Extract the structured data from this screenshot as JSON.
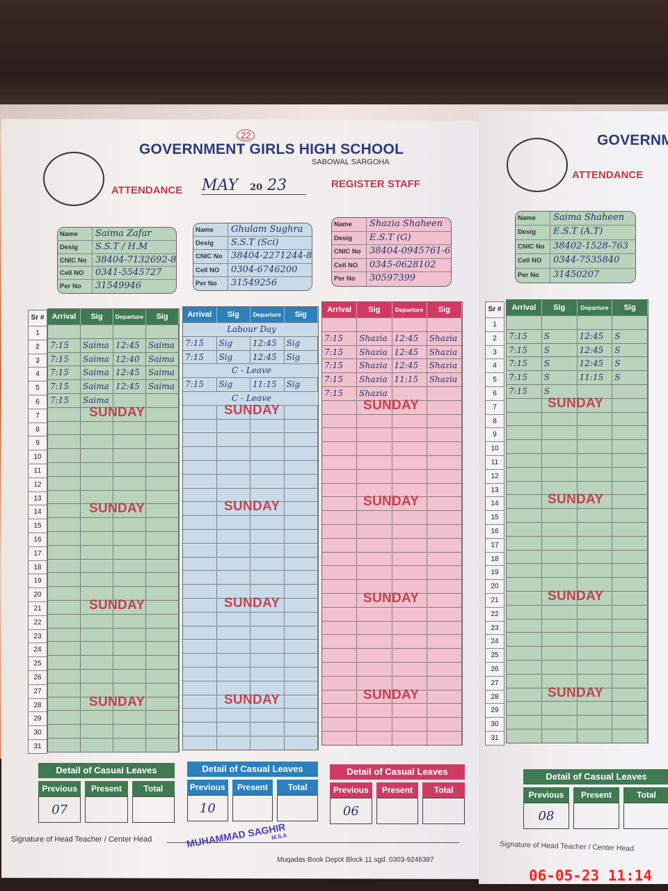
{
  "header": {
    "school": "GOVERNMENT GIRLS HIGH SCHOOL",
    "location": "SABOWAL SARGOHA",
    "attendance": "ATTENDANCE",
    "month": "MAY",
    "year_prefix": "20",
    "year_suffix": "23",
    "register": "REGISTER STAFF",
    "page_badge": "22"
  },
  "right_header": {
    "school": "GOVERNM",
    "attendance": "ATTENDANCE"
  },
  "card_labels": [
    "Name",
    "Desig",
    "CNIC No",
    "Cell NO",
    "Per No"
  ],
  "columns": {
    "sr": "Sr #",
    "arrival": "Arrival",
    "sig": "Sig",
    "departure": "Departure"
  },
  "stamp_text": "SUNDAY",
  "sunday_rows": [
    7,
    14,
    21,
    28
  ],
  "colors": {
    "green": "#3f7a52",
    "blue": "#2b80bd",
    "pink": "#cf3a63",
    "green_bg": "#b9d3bd",
    "blue_bg": "#c9dbe9",
    "pink_bg": "#f1c1cf"
  },
  "staff": [
    {
      "name": "Saima Zafar",
      "desig": "S.S.T / H.M",
      "cnic": "38404-7132692-8",
      "cell": "0341-5545727",
      "per": "31549946",
      "rows": [
        [
          "",
          "",
          "",
          ""
        ],
        [
          "7:15",
          "Saima",
          "12:45",
          "Saima"
        ],
        [
          "7:15",
          "Saima",
          "12:40",
          "Saima"
        ],
        [
          "7:15",
          "Saima",
          "12:45",
          "Saima"
        ],
        [
          "7:15",
          "Saima",
          "12:45",
          "Saima"
        ],
        [
          "7:15",
          "Saima",
          "",
          ""
        ]
      ],
      "leaves": {
        "previous": "07",
        "present": "",
        "total": ""
      }
    },
    {
      "name": "Ghulam Sughra",
      "desig": "S.S.T (Sci)",
      "cnic": "38404-2271244-8",
      "cell": "0304-6746200",
      "per": "31549256",
      "rows": [
        [
          "Labour Day"
        ],
        [
          "7:15",
          "Sig",
          "12:45",
          "Sig"
        ],
        [
          "7:15",
          "Sig",
          "12:45",
          "Sig"
        ],
        [
          "C - Leave"
        ],
        [
          "7:15",
          "Sig",
          "11:15",
          "Sig"
        ],
        [
          "C - Leave"
        ]
      ],
      "leaves": {
        "previous": "10",
        "present": "",
        "total": ""
      }
    },
    {
      "name": "Shazia Shaheen",
      "desig": "E.S.T (G)",
      "cnic": "38404-0945761-6",
      "cell": "0345-0628102",
      "per": "30597399",
      "rows": [
        [
          "",
          "",
          "",
          ""
        ],
        [
          "7:15",
          "Shazia",
          "12:45",
          "Shazia"
        ],
        [
          "7:15",
          "Shazia",
          "12:45",
          "Shazia"
        ],
        [
          "7:15",
          "Shazia",
          "12:45",
          "Shazia"
        ],
        [
          "7:15",
          "Shazia",
          "11:15",
          "Shazia"
        ],
        [
          "7:15",
          "Shazia",
          "",
          ""
        ]
      ],
      "leaves": {
        "previous": "06",
        "present": "",
        "total": ""
      }
    },
    {
      "name": "Saima Shaheen",
      "desig": "E.S.T (A.T)",
      "cnic": "38402-1528-763",
      "cell": "0344-7535840",
      "per": "31450207",
      "rows": [
        [
          "",
          "",
          "",
          ""
        ],
        [
          "7:15",
          "S",
          "12:45",
          "S"
        ],
        [
          "7:15",
          "S",
          "12:45",
          "S"
        ],
        [
          "7:15",
          "S",
          "12:45",
          "S"
        ],
        [
          "7:15",
          "S",
          "11:15",
          "S"
        ],
        [
          "7:15",
          "S",
          "",
          ""
        ]
      ],
      "leaves": {
        "previous": "08",
        "present": "",
        "total": ""
      }
    }
  ],
  "casual_leaves": {
    "title": "Detail of Casual Leaves",
    "previous": "Previous",
    "present": "Present",
    "total": "Total"
  },
  "footer": {
    "signature_label": "Signature of Head Teacher / Center Head",
    "stamp_name": "MUHAMMAD SAGHIR",
    "stamp_sub": "M.S.A",
    "printer": "Muqadas Book Depot Block 11 sgd. 0303-9246387",
    "right_signature": "Signature of Head Teacher / Center Head"
  },
  "timestamp": "06-05-23  11:14"
}
